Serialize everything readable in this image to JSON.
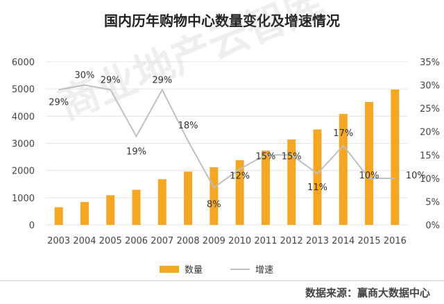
{
  "title": "国内历年购物中心数量变化及增速情况",
  "watermark": "商业地产云智库",
  "source": "数据来源：赢商大数据中心",
  "colors": {
    "bar": "#F5A623",
    "line": "#BFBFBF",
    "grid": "#E3E3E3"
  },
  "legend": {
    "bar_label": "数量",
    "line_label": "增速"
  },
  "chart_data": {
    "type": "bar",
    "categories": [
      "2003",
      "2004",
      "2005",
      "2006",
      "2007",
      "2008",
      "2009",
      "2010",
      "2011",
      "2012",
      "2013",
      "2014",
      "2015",
      "2016"
    ],
    "series": [
      {
        "name": "数量",
        "type": "bar",
        "axis": "left",
        "values": [
          650,
          840,
          1090,
          1290,
          1680,
          1960,
          2120,
          2380,
          2730,
          3140,
          3510,
          4080,
          4520,
          4980
        ]
      },
      {
        "name": "增速",
        "type": "line",
        "axis": "right",
        "values": [
          29,
          30,
          29,
          19,
          29,
          18,
          8,
          12,
          15,
          15,
          11,
          17,
          10,
          10
        ],
        "labels": [
          "29%",
          "30%",
          "29%",
          "19%",
          "29%",
          "18%",
          "8%",
          "12%",
          "15%",
          "15%",
          "11%",
          "17%",
          "10%",
          "10%"
        ]
      }
    ],
    "yleft": {
      "ticks": [
        "0",
        "1000",
        "2000",
        "3000",
        "4000",
        "5000",
        "6000"
      ],
      "lim": [
        0,
        6000
      ]
    },
    "yright": {
      "ticks": [
        "0%",
        "5%",
        "10%",
        "15%",
        "20%",
        "25%",
        "30%",
        "35%"
      ],
      "lim": [
        0,
        35
      ]
    },
    "grid": true,
    "legend_position": "bottom"
  }
}
